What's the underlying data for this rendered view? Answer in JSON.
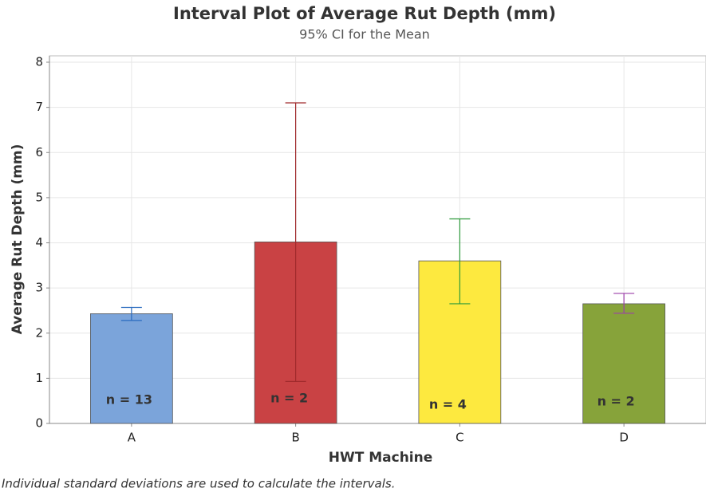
{
  "chart_data": {
    "type": "interval-bar",
    "title": "Interval Plot of Average Rut Depth (mm)",
    "subtitle": "95% CI for the Mean",
    "x_label": "HWT Machine",
    "y_label": "Average Rut Depth (mm)",
    "footnote": "Individual standard deviations are used to calculate the intervals.",
    "categories": [
      "A",
      "B",
      "C",
      "D"
    ],
    "values": [
      2.43,
      4.02,
      3.6,
      2.65
    ],
    "ci_low": [
      2.28,
      0.93,
      2.65,
      2.44
    ],
    "ci_high": [
      2.57,
      7.1,
      4.53,
      2.88
    ],
    "colors": [
      "#7ba4da",
      "#c94244",
      "#fde93f",
      "#87a33a"
    ],
    "error_colors": [
      "#2a6bbf",
      "#a02a2c",
      "#2e9a3a",
      "#9b3fa8"
    ],
    "annotations": [
      "n = 13",
      "n = 2",
      "n = 4",
      "n = 2"
    ],
    "ylim": [
      0,
      8
    ],
    "yticks": [
      0,
      1,
      2,
      3,
      4,
      5,
      6,
      7,
      8
    ],
    "grid": true
  }
}
